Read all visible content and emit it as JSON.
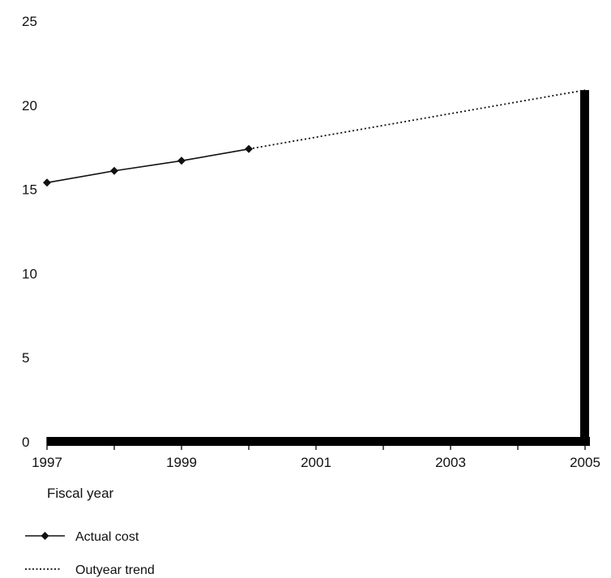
{
  "chart_data": {
    "type": "line",
    "title": "",
    "xlabel": "Fiscal year",
    "ylabel": "",
    "xlim": [
      1997,
      2005
    ],
    "ylim": [
      0,
      25
    ],
    "x_ticks": [
      "1997",
      "1999",
      "2001",
      "2003",
      "2005"
    ],
    "y_ticks": [
      "0",
      "5",
      "10",
      "15",
      "20",
      "25"
    ],
    "grid": false,
    "legend_position": "bottom-left",
    "series": [
      {
        "name": "Actual cost",
        "style": "solid-with-diamond-markers",
        "x": [
          1997,
          1998,
          1999,
          2000
        ],
        "y": [
          15.4,
          16.1,
          16.7,
          17.4
        ]
      },
      {
        "name": "Outyear trend",
        "style": "dotted",
        "x": [
          2000,
          2001,
          2002,
          2003,
          2004,
          2005
        ],
        "y": [
          17.4,
          18.1,
          18.8,
          19.5,
          20.2,
          20.9
        ]
      }
    ],
    "colors": {
      "line": "#111111",
      "axis": "#000000"
    }
  }
}
